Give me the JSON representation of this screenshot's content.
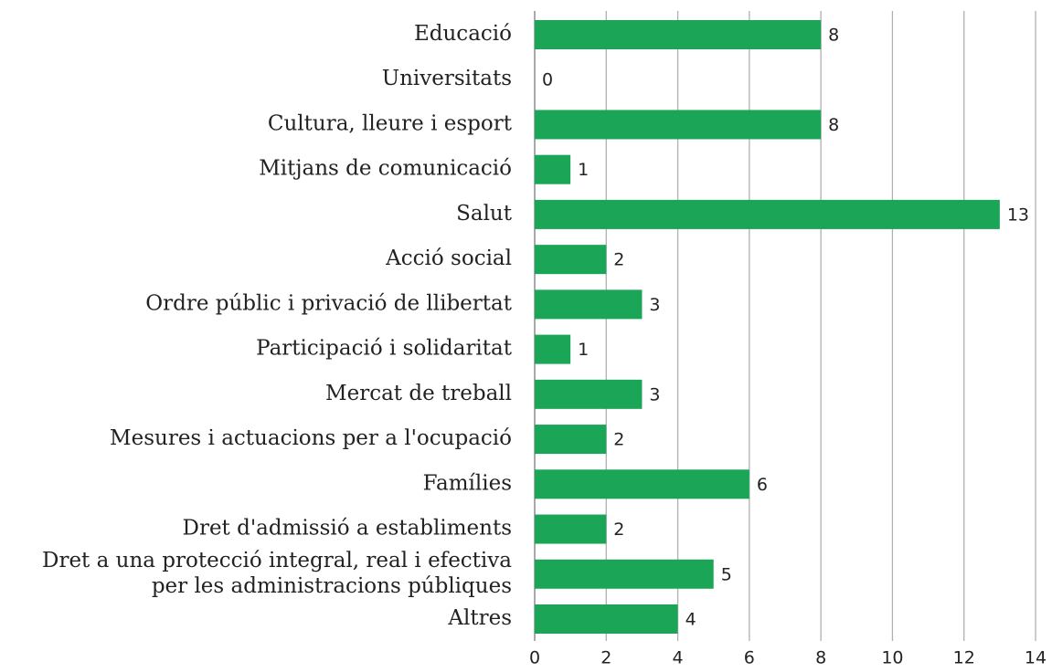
{
  "chart_data": {
    "type": "bar",
    "orientation": "horizontal",
    "categories": [
      "Educació",
      "Universitats",
      "Cultura, lleure i esport",
      "Mitjans de comunicació",
      "Salut",
      "Acció social",
      "Ordre públic i privació de llibertat",
      "Participació i solidaritat",
      "Mercat de treball",
      "Mesures i actuacions per a l'ocupació",
      "Famílies",
      "Dret d'admissió a establiments",
      "Dret a una protecció integral, real i efectiva\nper les administracions públiques",
      "Altres"
    ],
    "values": [
      8,
      0,
      8,
      1,
      13,
      2,
      3,
      1,
      3,
      2,
      6,
      2,
      5,
      4
    ],
    "color": "#1aa557",
    "xlim": [
      0,
      14
    ],
    "xticks": [
      0,
      2,
      4,
      6,
      8,
      10,
      12,
      14
    ],
    "grid": true
  }
}
